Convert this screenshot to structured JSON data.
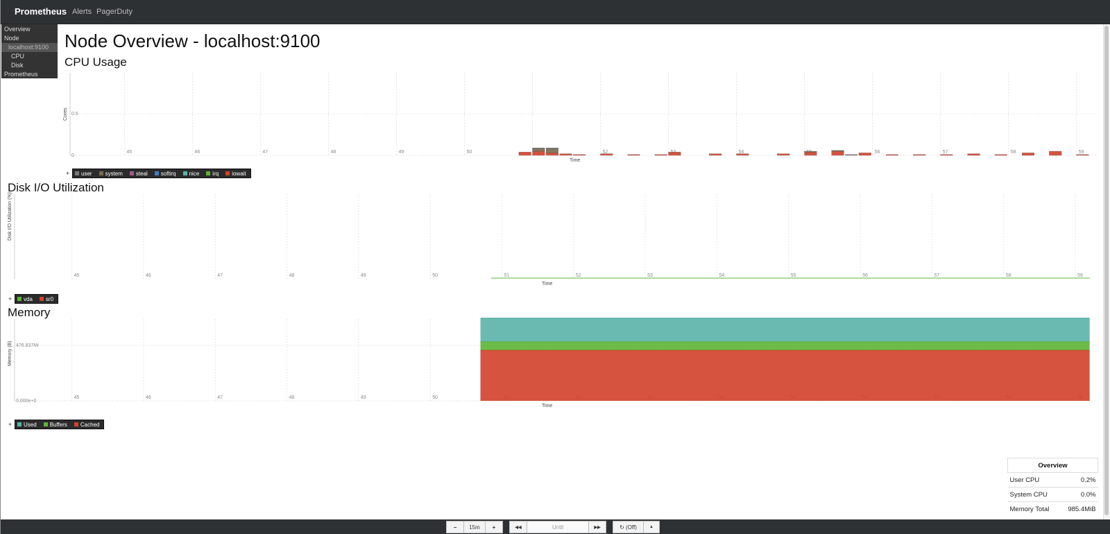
{
  "navbar": {
    "brand": "Prometheus",
    "links": [
      "Alerts",
      "PagerDuty"
    ]
  },
  "sidebar": {
    "items": [
      "Overview",
      "Node",
      "localhost:9100",
      "CPU",
      "Disk",
      "Prometheus"
    ]
  },
  "page_title": "Node Overview - localhost:9100",
  "sections": {
    "cpu": "CPU Usage",
    "disk": "Disk I/O Utilization",
    "memory": "Memory"
  },
  "chart_data": [
    {
      "type": "area",
      "title": "CPU Usage",
      "xlabel": "Time",
      "ylabel": "Cores",
      "x_ticks": [
        "45",
        "46",
        "47",
        "48",
        "49",
        "50",
        "51",
        "52",
        "53",
        "54",
        "55",
        "56",
        "57",
        "58",
        "59"
      ],
      "y_ticks": [
        "0",
        "0.5"
      ],
      "ylim": [
        0,
        1
      ],
      "legend": [
        "user",
        "system",
        "steal",
        "softirq",
        "nice",
        "irq",
        "iowait"
      ],
      "colors": {
        "user": "#7a7a7a",
        "system": "#7a6a50",
        "steal": "#a05c8c",
        "softirq": "#3d7ec2",
        "nice": "#5bb3a9",
        "irq": "#5db435",
        "iowait": "#d2412a"
      },
      "series": [
        {
          "name": "iowait",
          "x": [
            50.8,
            51.0,
            51.2,
            51.4,
            51.6,
            52.0,
            52.4,
            52.8,
            53.0,
            53.6,
            54.0,
            54.6,
            55.0,
            55.4,
            55.8,
            56.2,
            56.6,
            57.0,
            57.4,
            57.8,
            58.2,
            58.6,
            59.0,
            59.4
          ],
          "values": [
            0.04,
            0.05,
            0.03,
            0.02,
            0.01,
            0.02,
            0.01,
            0.01,
            0.04,
            0.02,
            0.02,
            0.02,
            0.04,
            0.05,
            0.03,
            0.01,
            0.01,
            0.01,
            0.02,
            0.01,
            0.03,
            0.05,
            0.01,
            0.02
          ]
        },
        {
          "name": "system",
          "x": [
            51.0,
            51.2,
            55.0,
            55.4,
            55.6
          ],
          "values": [
            0.03,
            0.05,
            0.01,
            0.01,
            0.01
          ]
        },
        {
          "name": "user",
          "x": [
            51.0,
            51.2
          ],
          "values": [
            0.01,
            0.01
          ]
        }
      ]
    },
    {
      "type": "line",
      "title": "Disk I/O Utilization",
      "xlabel": "Time",
      "ylabel": "Disk I/O Utilization (%)",
      "x_ticks": [
        "45",
        "46",
        "47",
        "48",
        "49",
        "50",
        "51",
        "52",
        "53",
        "54",
        "55",
        "56",
        "57",
        "58",
        "59"
      ],
      "legend": [
        "vda",
        "sr0"
      ],
      "colors": {
        "vda": "#5db435",
        "sr0": "#d2412a"
      },
      "series": [
        {
          "name": "vda",
          "x": [
            50.85,
            59.2
          ],
          "values": [
            0,
            0
          ]
        },
        {
          "name": "sr0",
          "x": [
            50.85,
            59.2
          ],
          "values": [
            0,
            0
          ]
        }
      ]
    },
    {
      "type": "area",
      "title": "Memory",
      "xlabel": "Time",
      "ylabel": "Memory (B)",
      "x_ticks": [
        "45",
        "46",
        "47",
        "48",
        "49",
        "50",
        "51",
        "52",
        "53",
        "54",
        "55",
        "56",
        "57",
        "58",
        "59"
      ],
      "y_ticks": [
        "0.000e+0",
        "476.837Mi"
      ],
      "ylim": [
        0,
        1000
      ],
      "legend": [
        "Used",
        "Buffers",
        "Cached"
      ],
      "colors": {
        "Used": "#5bb3a9",
        "Buffers": "#5db435",
        "Cached": "#d2412a"
      },
      "series": [
        {
          "name": "Cached",
          "x": [
            50.7,
            59.2
          ],
          "values": [
            620,
            620
          ]
        },
        {
          "name": "Buffers",
          "x": [
            50.7,
            59.2
          ],
          "values": [
            105,
            105
          ]
        },
        {
          "name": "Used",
          "x": [
            50.7,
            59.2
          ],
          "values": [
            285,
            285
          ]
        }
      ]
    }
  ],
  "overview": {
    "title": "Overview",
    "rows": [
      {
        "label": "User CPU",
        "value": "0.2%"
      },
      {
        "label": "System CPU",
        "value": "0.0%"
      },
      {
        "label": "Memory Total",
        "value": "985.4MiB"
      }
    ]
  },
  "controls": {
    "minus": "−",
    "range": "15m",
    "plus": "+",
    "back": "◀◀",
    "until": "Until",
    "forward": "▶▶",
    "refresh": "↻ (Off)",
    "caret": "▲"
  }
}
